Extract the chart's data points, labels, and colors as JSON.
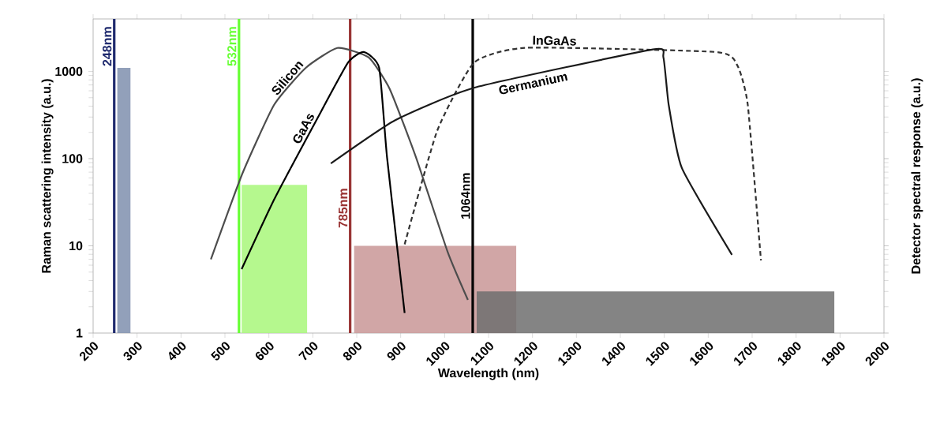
{
  "chart_data": {
    "type": "line",
    "xlabel": "Wavelength (nm)",
    "ylabel": "Raman scattering intensity (a.u.)",
    "y2label": "Detector spectral response (a.u.)",
    "log": "y",
    "grid": false,
    "marker": "none",
    "xlim": [
      200,
      2000
    ],
    "xticks": [
      200,
      300,
      400,
      500,
      600,
      700,
      800,
      900,
      1000,
      1100,
      1200,
      1300,
      1400,
      1500,
      1600,
      1700,
      1800,
      1900,
      2000
    ],
    "ylim": [
      1,
      4000
    ],
    "yticks": [
      1,
      10,
      100,
      1000
    ],
    "ref_lines": [
      {
        "axis": "x",
        "value": 248,
        "label": "248nm",
        "color": "#1f2a6e"
      },
      {
        "axis": "x",
        "value": 532,
        "label": "532nm",
        "color": "#66ff33"
      },
      {
        "axis": "x",
        "value": 785,
        "label": "785nm",
        "color": "#993333"
      },
      {
        "axis": "x",
        "value": 1064,
        "label": "1064nm",
        "color": "#000000"
      }
    ],
    "series": [
      {
        "type": "histogram",
        "bins": [
          255,
          285
        ],
        "values": [
          1100
        ],
        "color": "#7f8fae"
      },
      {
        "type": "histogram",
        "bins": [
          538,
          687
        ],
        "values": [
          50
        ],
        "color": "#a8f77a"
      },
      {
        "type": "histogram",
        "bins": [
          794,
          1163
        ],
        "values": [
          10
        ],
        "color": "#c99797"
      },
      {
        "type": "histogram",
        "bins": [
          1073,
          1887
        ],
        "values": [
          3
        ],
        "color": "#6f6f6f"
      },
      {
        "name": "Silicon",
        "color": "#4d4d4d",
        "line_style": "solid",
        "x": [
          468,
          540,
          612,
          684,
          756,
          827,
          875,
          935,
          1007,
          1053
        ],
        "values": [
          7,
          68,
          415,
          1100,
          1860,
          1450,
          630,
          103,
          8.5,
          2.4
        ]
      },
      {
        "name": "GaAs",
        "color": "#000000",
        "line_style": "solid",
        "x": [
          538,
          612,
          708,
          780,
          816,
          851,
          869,
          909
        ],
        "values": [
          5.4,
          34,
          275,
          1260,
          1670,
          1100,
          103,
          1.7
        ]
      },
      {
        "name": "InGaAs",
        "color": "#333333",
        "line_style": "dashed",
        "x": [
          909,
          983,
          1067,
          1187,
          1618,
          1666,
          1690,
          1720
        ],
        "values": [
          10.4,
          208,
          1260,
          1870,
          1670,
          1180,
          415,
          6.8
        ]
      },
      {
        "name": "Germanium",
        "color": "#1a1a1a",
        "line_style": "solid",
        "x": [
          741,
          887,
          1067,
          1474,
          1498,
          1510,
          1540,
          1654
        ],
        "values": [
          88,
          275,
          650,
          1790,
          1450,
          415,
          78,
          7.9
        ]
      }
    ]
  }
}
